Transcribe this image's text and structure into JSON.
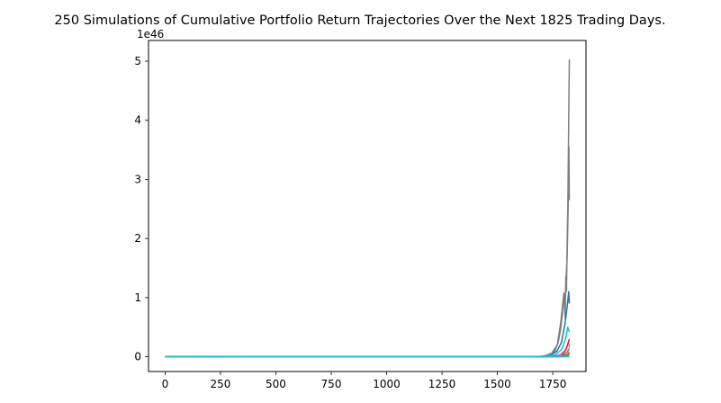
{
  "chart_data": {
    "type": "line",
    "title": "250 Simulations of Cumulative Portfolio Return Trajectories Over the Next 1825 Trading Days.",
    "xlabel": "",
    "ylabel": "",
    "y_offset_label": "1e46",
    "xlim": [
      -75,
      1900
    ],
    "ylim": [
      -0.25,
      5.35
    ],
    "x_ticks": [
      0,
      250,
      500,
      750,
      1000,
      1250,
      1500,
      1750
    ],
    "y_ticks": [
      0,
      1,
      2,
      3,
      4,
      5
    ],
    "grid": false,
    "legend": "none",
    "n_simulations": 250,
    "n_days": 1825,
    "series": [
      {
        "color": "#7f7f7f",
        "points": [
          [
            0,
            0
          ],
          [
            1650,
            0
          ],
          [
            1700,
            0.005
          ],
          [
            1740,
            0.03
          ],
          [
            1760,
            0.1
          ],
          [
            1775,
            0.25
          ],
          [
            1785,
            0.45
          ],
          [
            1793,
            0.7
          ],
          [
            1800,
            1.05
          ],
          [
            1803,
            0.85
          ],
          [
            1806,
            0.65
          ],
          [
            1809,
            1.35
          ],
          [
            1812,
            1.1
          ],
          [
            1815,
            1.9
          ],
          [
            1818,
            2.55
          ],
          [
            1821,
            3.6
          ],
          [
            1823,
            4.4
          ],
          [
            1825,
            5.03
          ]
        ]
      },
      {
        "color": "#7f7f7f",
        "points": [
          [
            0,
            0
          ],
          [
            1660,
            0
          ],
          [
            1710,
            0.01
          ],
          [
            1745,
            0.06
          ],
          [
            1770,
            0.2
          ],
          [
            1785,
            0.55
          ],
          [
            1795,
            0.9
          ],
          [
            1800,
            1.08
          ],
          [
            1805,
            0.9
          ],
          [
            1810,
            1.3
          ],
          [
            1815,
            1.7
          ],
          [
            1820,
            2.6
          ],
          [
            1823,
            3.55
          ],
          [
            1825,
            2.65
          ]
        ]
      },
      {
        "color": "#1f77b4",
        "points": [
          [
            0,
            0
          ],
          [
            1690,
            0
          ],
          [
            1740,
            0.02
          ],
          [
            1770,
            0.1
          ],
          [
            1790,
            0.25
          ],
          [
            1805,
            0.55
          ],
          [
            1812,
            0.75
          ],
          [
            1818,
            0.95
          ],
          [
            1822,
            1.1
          ],
          [
            1825,
            0.9
          ]
        ]
      },
      {
        "color": "#17becf",
        "points": [
          [
            0,
            0
          ],
          [
            1700,
            0
          ],
          [
            1760,
            0.03
          ],
          [
            1790,
            0.12
          ],
          [
            1808,
            0.3
          ],
          [
            1818,
            0.5
          ],
          [
            1825,
            0.42
          ]
        ]
      },
      {
        "color": "#e377c2",
        "points": [
          [
            0,
            0
          ],
          [
            1720,
            0
          ],
          [
            1780,
            0.03
          ],
          [
            1805,
            0.1
          ],
          [
            1815,
            0.18
          ],
          [
            1822,
            0.25
          ],
          [
            1825,
            0.15
          ]
        ]
      },
      {
        "color": "#d62728",
        "points": [
          [
            0,
            0
          ],
          [
            1730,
            0
          ],
          [
            1790,
            0.02
          ],
          [
            1810,
            0.12
          ],
          [
            1818,
            0.22
          ],
          [
            1825,
            0.3
          ]
        ]
      },
      {
        "color": "#9467bd",
        "points": [
          [
            0,
            0
          ],
          [
            1740,
            0
          ],
          [
            1795,
            0.02
          ],
          [
            1815,
            0.08
          ],
          [
            1825,
            0.14
          ]
        ]
      },
      {
        "color": "#ff7f0e",
        "points": [
          [
            0,
            0
          ],
          [
            1745,
            0
          ],
          [
            1800,
            0.01
          ],
          [
            1818,
            0.05
          ],
          [
            1825,
            0.09
          ]
        ]
      },
      {
        "color": "#2ca02c",
        "points": [
          [
            0,
            0
          ],
          [
            1750,
            0
          ],
          [
            1805,
            0.01
          ],
          [
            1820,
            0.04
          ],
          [
            1825,
            0.06
          ]
        ]
      },
      {
        "color": "#8c564b",
        "points": [
          [
            0,
            0
          ],
          [
            1755,
            0
          ],
          [
            1810,
            0.01
          ],
          [
            1825,
            0.03
          ]
        ]
      },
      {
        "color": "#bcbd22",
        "points": [
          [
            0,
            0
          ],
          [
            1760,
            0
          ],
          [
            1812,
            0.005
          ],
          [
            1825,
            0.02
          ]
        ]
      },
      {
        "color": "#17becf",
        "points": [
          [
            0,
            0
          ],
          [
            1825,
            0.002
          ]
        ]
      }
    ]
  }
}
